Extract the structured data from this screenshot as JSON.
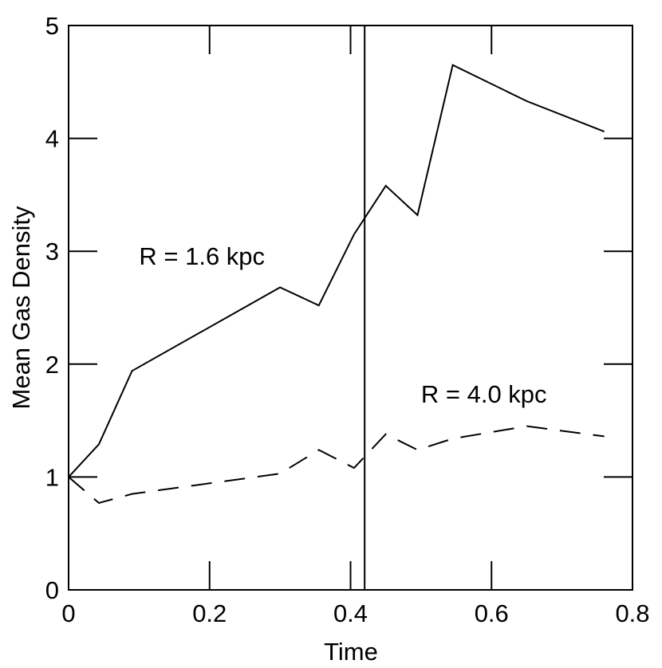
{
  "chart_data": {
    "type": "line",
    "title": "",
    "xlabel": "Time",
    "ylabel": "Mean Gas Density",
    "xlim": [
      0,
      0.8
    ],
    "ylim": [
      0,
      5
    ],
    "x_ticks": [
      0,
      0.2,
      0.4,
      0.6,
      0.8
    ],
    "x_tick_labels": [
      "0",
      "0.2",
      "0.4",
      "0.6",
      "0.8"
    ],
    "y_ticks": [
      0,
      1,
      2,
      3,
      4,
      5
    ],
    "y_tick_labels": [
      "0",
      "1",
      "2",
      "3",
      "4",
      "5"
    ],
    "grid": false,
    "vertical_line_x": 0.42,
    "series": [
      {
        "name": "R = 1.6 kpc",
        "style": "solid",
        "color": "#000000",
        "x": [
          0,
          0.043,
          0.09,
          0.3,
          0.355,
          0.405,
          0.45,
          0.495,
          0.545,
          0.65,
          0.76
        ],
        "y": [
          1.0,
          1.29,
          1.94,
          2.68,
          2.52,
          3.15,
          3.58,
          3.32,
          4.65,
          4.33,
          4.06
        ]
      },
      {
        "name": "R = 4.0 kpc",
        "style": "dashed",
        "color": "#000000",
        "x": [
          0,
          0.043,
          0.09,
          0.3,
          0.355,
          0.405,
          0.45,
          0.495,
          0.545,
          0.65,
          0.76
        ],
        "y": [
          1.0,
          0.77,
          0.85,
          1.03,
          1.24,
          1.08,
          1.38,
          1.24,
          1.34,
          1.45,
          1.36
        ]
      }
    ],
    "annotations": [
      {
        "text": "R = 1.6 kpc",
        "x": 0.1,
        "y": 2.88
      },
      {
        "text": "R = 4.0 kpc",
        "x": 0.5,
        "y": 1.66
      }
    ]
  }
}
